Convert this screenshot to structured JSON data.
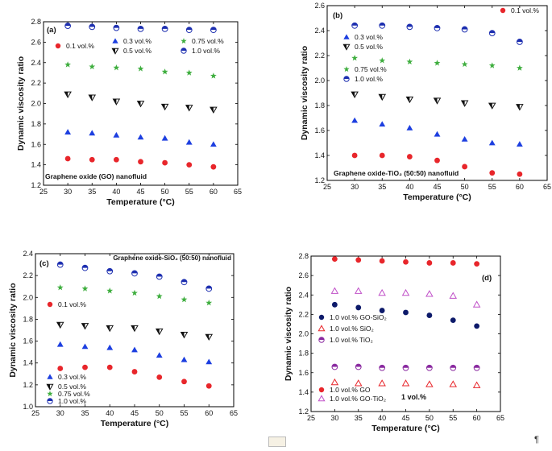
{
  "page": {
    "pilcrow": "¶"
  },
  "chart_data": [
    {
      "id": "a",
      "type": "scatter",
      "panel_label": "(a)",
      "annotation": "Graphene oxide (GO) nanofluid",
      "xlabel": "Temperature (°C)",
      "ylabel": "Dynamic viscosity ratio",
      "xlim": [
        25,
        65
      ],
      "ylim": [
        1.2,
        2.8
      ],
      "xticks": [
        25,
        30,
        35,
        40,
        45,
        50,
        55,
        60,
        65
      ],
      "yticks": [
        1.2,
        1.4,
        1.6,
        1.8,
        2.0,
        2.2,
        2.4,
        2.6,
        2.8
      ],
      "ytick_labels": [
        "1.2",
        "1.4",
        "1.6",
        "1.8",
        "2.0",
        "2.2",
        "2.4",
        "2.6",
        "2.8"
      ],
      "legend_position": "top",
      "x": [
        30,
        35,
        40,
        45,
        50,
        55,
        60
      ],
      "series": [
        {
          "name": "0.1 vol.%",
          "marker": "circle",
          "color": "#e8262b",
          "values": [
            1.46,
            1.45,
            1.45,
            1.43,
            1.42,
            1.4,
            1.38
          ]
        },
        {
          "name": "0.3 vol.%",
          "marker": "triangle",
          "color": "#1d3fe0",
          "values": [
            1.72,
            1.71,
            1.69,
            1.67,
            1.66,
            1.62,
            1.6
          ]
        },
        {
          "name": "0.5 vol.%",
          "marker": "tri-down",
          "color": "#111111",
          "values": [
            2.09,
            2.06,
            2.02,
            2.0,
            1.97,
            1.96,
            1.94
          ]
        },
        {
          "name": "0.75 vol.%",
          "marker": "star",
          "color": "#3fae3f",
          "values": [
            2.38,
            2.36,
            2.35,
            2.34,
            2.31,
            2.3,
            2.27
          ]
        },
        {
          "name": "1.0 vol.%",
          "marker": "half-circle",
          "color": "#1d2fb0",
          "values": [
            2.76,
            2.75,
            2.74,
            2.73,
            2.73,
            2.72,
            2.72
          ]
        }
      ]
    },
    {
      "id": "b",
      "type": "scatter",
      "panel_label": "(b)",
      "annotation": "Graphene oxide-TiO₂ (50:50) nanofluid",
      "xlabel": "Temperature (°C)",
      "ylabel": "Dynamic viscosity ratio",
      "xlim": [
        25,
        65
      ],
      "ylim": [
        1.2,
        2.6
      ],
      "xticks": [
        25,
        30,
        35,
        40,
        45,
        50,
        55,
        60,
        65
      ],
      "yticks": [
        1.2,
        1.4,
        1.6,
        1.8,
        2.0,
        2.2,
        2.4,
        2.6
      ],
      "ytick_labels": [
        "1.2",
        "1.4",
        "1.6",
        "1.8",
        "2.0",
        "2.2",
        "2.4",
        "2.6"
      ],
      "legend_position": "left",
      "x": [
        30,
        35,
        40,
        45,
        50,
        55,
        60
      ],
      "series": [
        {
          "name": "0.1 vol.%",
          "marker": "circle",
          "color": "#e8262b",
          "values": [
            1.4,
            1.4,
            1.39,
            1.36,
            1.31,
            1.26,
            1.25
          ]
        },
        {
          "name": "0.3 vol.%",
          "marker": "triangle",
          "color": "#1d3fe0",
          "values": [
            1.68,
            1.65,
            1.62,
            1.57,
            1.53,
            1.5,
            1.49
          ]
        },
        {
          "name": "0.5 vol.%",
          "marker": "tri-down",
          "color": "#111111",
          "values": [
            1.89,
            1.87,
            1.85,
            1.84,
            1.82,
            1.8,
            1.79
          ]
        },
        {
          "name": "0.75 vol.%",
          "marker": "star",
          "color": "#3fae3f",
          "values": [
            2.18,
            2.16,
            2.15,
            2.14,
            2.13,
            2.12,
            2.1
          ]
        },
        {
          "name": "1.0 vol.%",
          "marker": "half-circle",
          "color": "#1d2fb0",
          "values": [
            2.44,
            2.44,
            2.43,
            2.42,
            2.41,
            2.38,
            2.31
          ]
        }
      ]
    },
    {
      "id": "c",
      "type": "scatter",
      "panel_label": "(c)",
      "annotation": "Graphene oxide-SiO₂ (50:50) nanofluid",
      "xlabel": "Temperature (°C)",
      "ylabel": "Dynamic viscosity ratio",
      "xlim": [
        25,
        65
      ],
      "ylim": [
        1.0,
        2.4
      ],
      "xticks": [
        25,
        30,
        35,
        40,
        45,
        50,
        55,
        60,
        65
      ],
      "yticks": [
        1.0,
        1.2,
        1.4,
        1.6,
        1.8,
        2.0,
        2.2,
        2.4
      ],
      "ytick_labels": [
        "1.0",
        "1.2",
        "1.4",
        "1.6",
        "1.8",
        "2.0",
        "2.2",
        "2.4"
      ],
      "legend_position": "left",
      "x": [
        30,
        35,
        40,
        45,
        50,
        55,
        60
      ],
      "series": [
        {
          "name": "0.1 vol.%",
          "marker": "circle",
          "color": "#e8262b",
          "values": [
            1.35,
            1.36,
            1.36,
            1.32,
            1.27,
            1.23,
            1.19
          ]
        },
        {
          "name": "0.3 vol.%",
          "marker": "triangle",
          "color": "#1d3fe0",
          "values": [
            1.57,
            1.55,
            1.54,
            1.52,
            1.47,
            1.43,
            1.41
          ]
        },
        {
          "name": "0.5 vol.%",
          "marker": "tri-down",
          "color": "#111111",
          "values": [
            1.75,
            1.74,
            1.72,
            1.72,
            1.69,
            1.66,
            1.64
          ]
        },
        {
          "name": "0.75 vol.%",
          "marker": "star",
          "color": "#3fae3f",
          "values": [
            2.09,
            2.08,
            2.06,
            2.04,
            2.01,
            1.98,
            1.95
          ]
        },
        {
          "name": "1.0 vol.%",
          "marker": "half-circle",
          "color": "#1d2fb0",
          "values": [
            2.3,
            2.27,
            2.24,
            2.22,
            2.19,
            2.14,
            2.08
          ]
        }
      ]
    },
    {
      "id": "d",
      "type": "scatter",
      "panel_label": "(d)",
      "annotation": "1 vol.%",
      "xlabel": "Temperature (°C)",
      "ylabel": "Dynamic viscosity ratio",
      "xlim": [
        25,
        65
      ],
      "ylim": [
        1.2,
        2.8
      ],
      "xticks": [
        25,
        30,
        35,
        40,
        45,
        50,
        55,
        60,
        65
      ],
      "yticks": [
        1.2,
        1.4,
        1.6,
        1.8,
        2.0,
        2.2,
        2.4,
        2.6,
        2.8
      ],
      "ytick_labels": [
        "1.2",
        "1.4",
        "1.6",
        "1.8",
        "2.0",
        "2.2",
        "2.4",
        "2.6",
        "2.8"
      ],
      "legend_position": "left",
      "x": [
        30,
        35,
        40,
        45,
        50,
        55,
        60
      ],
      "series": [
        {
          "name": "1.0 vol.% GO",
          "marker": "circle",
          "color": "#e8262b",
          "values": [
            2.77,
            2.76,
            2.75,
            2.74,
            2.73,
            2.73,
            2.72
          ]
        },
        {
          "name": "1.0 vol.% GO-TiO₂",
          "marker": "open-triangle",
          "color": "#c050c8",
          "values": [
            2.44,
            2.44,
            2.42,
            2.42,
            2.41,
            2.39,
            2.3
          ]
        },
        {
          "name": "1.0 vol.% GO-SiO₂",
          "marker": "circle",
          "color": "#0d1a6a",
          "values": [
            2.3,
            2.27,
            2.24,
            2.22,
            2.19,
            2.14,
            2.08
          ]
        },
        {
          "name": "1.0 vol.% SiO₂",
          "marker": "open-triangle",
          "color": "#e8262b",
          "values": [
            1.5,
            1.49,
            1.49,
            1.49,
            1.48,
            1.48,
            1.47
          ]
        },
        {
          "name": "1.0 vol.% TiO₂",
          "marker": "half-circle",
          "color": "#8a2aa0",
          "values": [
            1.66,
            1.66,
            1.65,
            1.65,
            1.65,
            1.65,
            1.65
          ]
        }
      ]
    }
  ]
}
